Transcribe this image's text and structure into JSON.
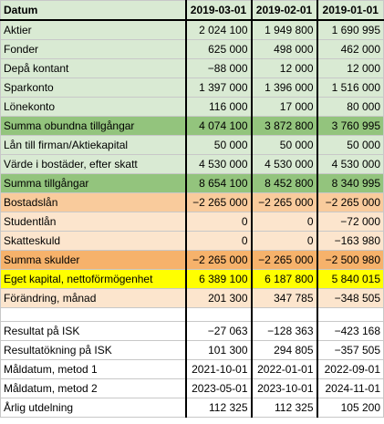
{
  "header": {
    "label": "Datum",
    "dates": [
      "2019-03-01",
      "2019-02-01",
      "2019-01-01"
    ]
  },
  "rows": [
    {
      "label": "Aktier",
      "values": [
        "2 024 100",
        "1 949 800",
        "1 690 995"
      ],
      "style": "g-light"
    },
    {
      "label": "Fonder",
      "values": [
        "625 000",
        "498 000",
        "462 000"
      ],
      "style": "g-light"
    },
    {
      "label": "Depå kontant",
      "values": [
        "−88 000",
        "12 000",
        "12 000"
      ],
      "style": "g-light"
    },
    {
      "label": "Sparkonto",
      "values": [
        "1 397 000",
        "1 396 000",
        "1 516 000"
      ],
      "style": "g-light"
    },
    {
      "label": "Lönekonto",
      "values": [
        "116 000",
        "17 000",
        "80 000"
      ],
      "style": "g-light"
    },
    {
      "label": "Summa obundna tillgångar",
      "values": [
        "4 074 100",
        "3 872 800",
        "3 760 995"
      ],
      "style": "g-dark"
    },
    {
      "label": "Lån till firman/Aktiekapital",
      "values": [
        "50 000",
        "50 000",
        "50 000"
      ],
      "style": "g-light"
    },
    {
      "label": "Värde i bostäder, efter skatt",
      "values": [
        "4 530 000",
        "4 530 000",
        "4 530 000"
      ],
      "style": "g-light"
    },
    {
      "label": "Summa tillgångar",
      "values": [
        "8 654 100",
        "8 452 800",
        "8 340 995"
      ],
      "style": "g-dark"
    },
    {
      "label": "Bostadslån",
      "values": [
        "−2 265 000",
        "−2 265 000",
        "−2 265 000"
      ],
      "style": "o-dark"
    },
    {
      "label": "Studentlån",
      "values": [
        "0",
        "0",
        "−72 000"
      ],
      "style": "o-light"
    },
    {
      "label": "Skatteskuld",
      "values": [
        "0",
        "0",
        "−163 980"
      ],
      "style": "o-light"
    },
    {
      "label": "Summa skulder",
      "values": [
        "−2 265 000",
        "−2 265 000",
        "−2 500 980"
      ],
      "style": "o-mid"
    },
    {
      "label": "Eget kapital, nettoförmögenhet",
      "values": [
        "6 389 100",
        "6 187 800",
        "5 840 015"
      ],
      "style": "y"
    },
    {
      "label": "Förändring, månad",
      "values": [
        "201 300",
        "347 785",
        "−348 505"
      ],
      "style": "o-light"
    }
  ],
  "bottom_rows": [
    {
      "label": "Resultat på ISK",
      "values": [
        "−27 063",
        "−128 363",
        "−423 168"
      ]
    },
    {
      "label": "Resultatökning på ISK",
      "values": [
        "101 300",
        "294 805",
        "−357 505"
      ]
    },
    {
      "label": "Måldatum, metod 1",
      "values": [
        "2021-10-01",
        "2022-01-01",
        "2022-09-01"
      ]
    },
    {
      "label": "Måldatum, metod 2",
      "values": [
        "2023-05-01",
        "2023-10-01",
        "2024-11-01"
      ]
    },
    {
      "label": "Årlig utdelning",
      "values": [
        "112 325",
        "112 325",
        "105 200"
      ]
    }
  ],
  "colors": {
    "green_light": "#d9ead3",
    "green_dark": "#93c47d",
    "orange_dark": "#f9cb9c",
    "orange_light": "#fce5cd",
    "orange_mid": "#f6b26b",
    "yellow": "#ffff00"
  }
}
